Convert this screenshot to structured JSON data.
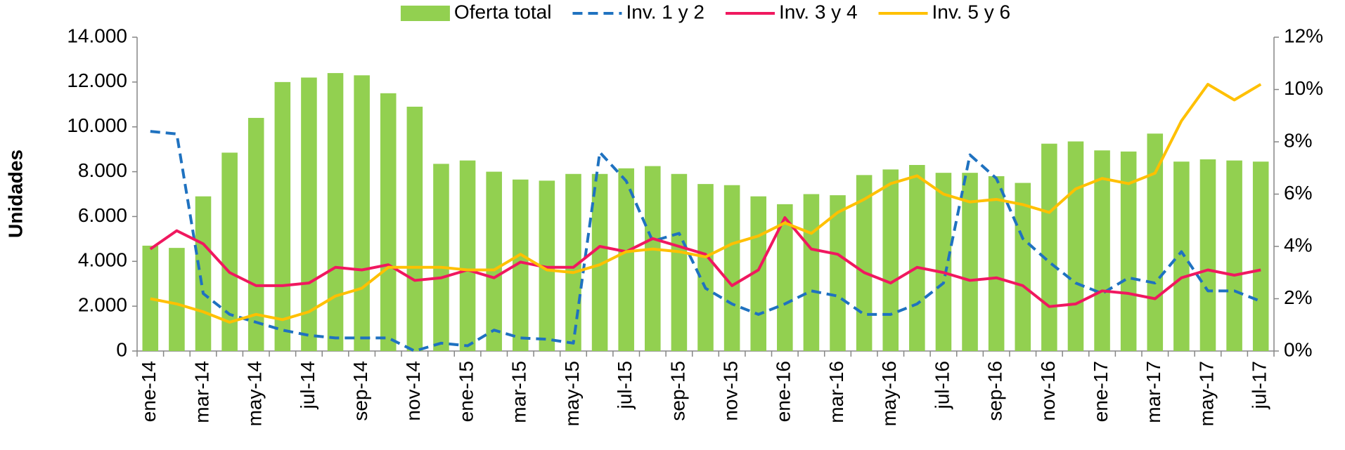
{
  "chart_data": {
    "type": "bar",
    "y_label": "Unidades",
    "legend": "top",
    "categories": [
      "ene-14",
      null,
      "mar-14",
      null,
      "may-14",
      null,
      "jul-14",
      null,
      "sep-14",
      null,
      "nov-14",
      null,
      "ene-15",
      null,
      "mar-15",
      null,
      "may-15",
      null,
      "jul-15",
      null,
      "sep-15",
      null,
      "nov-15",
      null,
      "ene-16",
      null,
      "mar-16",
      null,
      "may-16",
      null,
      "jul-16",
      null,
      "sep-16",
      null,
      "nov-16",
      null,
      "ene-17",
      null,
      "mar-17",
      null,
      "may-17",
      null,
      "jul-17"
    ],
    "ylim": [
      0,
      14000
    ],
    "yticks": [
      0,
      {
        "value": 2000,
        "label": "2.000"
      },
      {
        "value": 4000,
        "label": "4.000"
      },
      {
        "value": 6000,
        "label": "6.000"
      },
      {
        "value": 8000,
        "label": "8.000"
      },
      {
        "value": 10000,
        "label": "10.000"
      },
      {
        "value": 12000,
        "label": "12.000"
      },
      {
        "value": 14000,
        "label": "14.000"
      }
    ],
    "y2lim": [
      0,
      12
    ],
    "y2ticks": [
      {
        "value": 0,
        "label": "0%"
      },
      {
        "value": 2,
        "label": "2%"
      },
      {
        "value": 4,
        "label": "4%"
      },
      {
        "value": 6,
        "label": "6%"
      },
      {
        "value": 8,
        "label": "8%"
      },
      {
        "value": 10,
        "label": "10%"
      },
      {
        "value": 12,
        "label": "12%"
      }
    ],
    "grid": false,
    "series": [
      {
        "name": "Oferta total",
        "type": "bar",
        "color": "#92d050",
        "values": [
          4700,
          4600,
          6900,
          8850,
          10400,
          12000,
          12200,
          12400,
          12300,
          11500,
          10900,
          8350,
          8500,
          8000,
          7650,
          7600,
          7900,
          7900,
          8150,
          8250,
          7900,
          7450,
          7400,
          6900,
          6550,
          7000,
          6950,
          7850,
          8100,
          8300,
          7950,
          7950,
          7800,
          7500,
          9250,
          9350,
          8950,
          8900,
          9700,
          8450,
          8550,
          8500,
          8450
        ]
      },
      {
        "name": "Inv. 1 y 2",
        "type": "line",
        "axis": "y2",
        "color": "#1f72c0",
        "dash": true,
        "values": [
          8.4,
          8.3,
          2.2,
          1.4,
          1.1,
          0.8,
          0.6,
          0.5,
          0.5,
          0.5,
          0.0,
          0.3,
          0.2,
          0.8,
          0.5,
          0.45,
          0.3,
          7.6,
          6.5,
          4.2,
          4.5,
          2.4,
          1.8,
          1.4,
          1.8,
          2.3,
          2.1,
          1.4,
          1.4,
          1.8,
          2.6,
          7.5,
          6.6,
          4.3,
          3.4,
          2.6,
          2.2,
          2.8,
          2.6,
          3.8,
          2.3,
          2.3,
          1.9
        ]
      },
      {
        "name": "Inv. 3 y 4",
        "type": "line",
        "axis": "y2",
        "color": "#f0185f",
        "dash": false,
        "values": [
          3.9,
          4.6,
          4.1,
          3.0,
          2.5,
          2.5,
          2.6,
          3.2,
          3.1,
          3.3,
          2.7,
          2.8,
          3.1,
          2.8,
          3.4,
          3.2,
          3.2,
          4.0,
          3.8,
          4.3,
          4.0,
          3.7,
          2.5,
          3.1,
          5.1,
          3.9,
          3.7,
          3.0,
          2.6,
          3.2,
          3.0,
          2.7,
          2.8,
          2.5,
          1.7,
          1.8,
          2.3,
          2.2,
          2.0,
          2.8,
          3.1,
          2.9,
          3.1
        ]
      },
      {
        "name": "Inv. 5 y 6",
        "type": "line",
        "axis": "y2",
        "color": "#ffc000",
        "dash": false,
        "values": [
          2.0,
          1.8,
          1.5,
          1.1,
          1.4,
          1.2,
          1.5,
          2.1,
          2.4,
          3.2,
          3.2,
          3.2,
          3.1,
          3.1,
          3.7,
          3.1,
          3.0,
          3.3,
          3.8,
          3.9,
          3.8,
          3.6,
          4.1,
          4.4,
          4.9,
          4.5,
          5.3,
          5.8,
          6.4,
          6.7,
          6.0,
          5.7,
          5.8,
          5.6,
          5.3,
          6.2,
          6.6,
          6.4,
          6.8,
          8.8,
          10.2,
          9.6,
          10.2
        ]
      }
    ]
  }
}
